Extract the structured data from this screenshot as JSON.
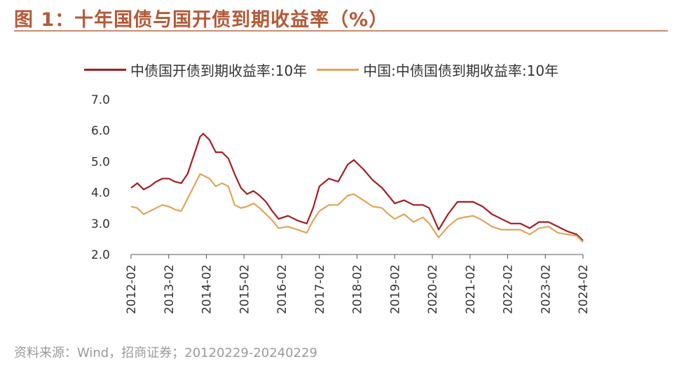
{
  "title": "图 1：十年国债与国开债到期收益率（%）",
  "source": "资料来源：Wind，招商证券；20120229-20240229",
  "chart_data": {
    "type": "line",
    "xlim": [
      "2012-02",
      "2024-02"
    ],
    "ylim": [
      2.0,
      7.0
    ],
    "yticks": [
      "2.0",
      "3.0",
      "4.0",
      "5.0",
      "6.0",
      "7.0"
    ],
    "xticks": [
      "2012-02",
      "2013-02",
      "2014-02",
      "2015-02",
      "2016-02",
      "2017-02",
      "2018-02",
      "2019-02",
      "2020-02",
      "2021-02",
      "2022-02",
      "2023-02",
      "2024-02"
    ],
    "legend_position": "top",
    "grid": false,
    "series": [
      {
        "name": "中债国开债到期收益率:10年",
        "color": "#a31f22",
        "points": [
          [
            "2012-02",
            4.15
          ],
          [
            "2012-04",
            4.3
          ],
          [
            "2012-06",
            4.1
          ],
          [
            "2012-08",
            4.2
          ],
          [
            "2012-10",
            4.35
          ],
          [
            "2012-12",
            4.45
          ],
          [
            "2013-02",
            4.45
          ],
          [
            "2013-04",
            4.35
          ],
          [
            "2013-06",
            4.3
          ],
          [
            "2013-08",
            4.6
          ],
          [
            "2013-10",
            5.2
          ],
          [
            "2013-12",
            5.8
          ],
          [
            "2014-01",
            5.9
          ],
          [
            "2014-03",
            5.7
          ],
          [
            "2014-05",
            5.3
          ],
          [
            "2014-07",
            5.3
          ],
          [
            "2014-09",
            5.1
          ],
          [
            "2014-11",
            4.6
          ],
          [
            "2015-01",
            4.15
          ],
          [
            "2015-03",
            3.95
          ],
          [
            "2015-05",
            4.05
          ],
          [
            "2015-07",
            3.9
          ],
          [
            "2015-09",
            3.7
          ],
          [
            "2015-11",
            3.4
          ],
          [
            "2016-01",
            3.15
          ],
          [
            "2016-04",
            3.25
          ],
          [
            "2016-07",
            3.1
          ],
          [
            "2016-10",
            3.0
          ],
          [
            "2016-12",
            3.5
          ],
          [
            "2017-02",
            4.2
          ],
          [
            "2017-05",
            4.45
          ],
          [
            "2017-08",
            4.35
          ],
          [
            "2017-11",
            4.9
          ],
          [
            "2018-01",
            5.05
          ],
          [
            "2018-04",
            4.75
          ],
          [
            "2018-07",
            4.4
          ],
          [
            "2018-10",
            4.15
          ],
          [
            "2018-12",
            3.9
          ],
          [
            "2019-02",
            3.65
          ],
          [
            "2019-05",
            3.75
          ],
          [
            "2019-08",
            3.6
          ],
          [
            "2019-11",
            3.6
          ],
          [
            "2020-01",
            3.5
          ],
          [
            "2020-04",
            2.8
          ],
          [
            "2020-07",
            3.3
          ],
          [
            "2020-10",
            3.7
          ],
          [
            "2020-12",
            3.7
          ],
          [
            "2021-03",
            3.7
          ],
          [
            "2021-06",
            3.55
          ],
          [
            "2021-09",
            3.3
          ],
          [
            "2021-12",
            3.15
          ],
          [
            "2022-03",
            3.0
          ],
          [
            "2022-06",
            3.0
          ],
          [
            "2022-09",
            2.85
          ],
          [
            "2022-12",
            3.05
          ],
          [
            "2023-03",
            3.05
          ],
          [
            "2023-06",
            2.9
          ],
          [
            "2023-09",
            2.75
          ],
          [
            "2023-12",
            2.65
          ],
          [
            "2024-02",
            2.45
          ]
        ]
      },
      {
        "name": "中国:中债国债到期收益率:10年",
        "color": "#e0a55a",
        "points": [
          [
            "2012-02",
            3.55
          ],
          [
            "2012-04",
            3.5
          ],
          [
            "2012-06",
            3.3
          ],
          [
            "2012-08",
            3.4
          ],
          [
            "2012-10",
            3.5
          ],
          [
            "2012-12",
            3.6
          ],
          [
            "2013-02",
            3.55
          ],
          [
            "2013-04",
            3.45
          ],
          [
            "2013-06",
            3.4
          ],
          [
            "2013-08",
            3.8
          ],
          [
            "2013-10",
            4.2
          ],
          [
            "2013-12",
            4.6
          ],
          [
            "2014-01",
            4.55
          ],
          [
            "2014-03",
            4.45
          ],
          [
            "2014-05",
            4.2
          ],
          [
            "2014-07",
            4.3
          ],
          [
            "2014-09",
            4.2
          ],
          [
            "2014-11",
            3.6
          ],
          [
            "2015-01",
            3.5
          ],
          [
            "2015-03",
            3.55
          ],
          [
            "2015-05",
            3.65
          ],
          [
            "2015-07",
            3.5
          ],
          [
            "2015-09",
            3.3
          ],
          [
            "2015-11",
            3.1
          ],
          [
            "2016-01",
            2.85
          ],
          [
            "2016-04",
            2.9
          ],
          [
            "2016-07",
            2.8
          ],
          [
            "2016-10",
            2.7
          ],
          [
            "2016-12",
            3.1
          ],
          [
            "2017-02",
            3.4
          ],
          [
            "2017-05",
            3.6
          ],
          [
            "2017-08",
            3.6
          ],
          [
            "2017-11",
            3.9
          ],
          [
            "2018-01",
            3.95
          ],
          [
            "2018-04",
            3.75
          ],
          [
            "2018-07",
            3.55
          ],
          [
            "2018-10",
            3.5
          ],
          [
            "2018-12",
            3.3
          ],
          [
            "2019-02",
            3.15
          ],
          [
            "2019-05",
            3.3
          ],
          [
            "2019-08",
            3.05
          ],
          [
            "2019-11",
            3.2
          ],
          [
            "2020-01",
            3.0
          ],
          [
            "2020-04",
            2.55
          ],
          [
            "2020-07",
            2.9
          ],
          [
            "2020-10",
            3.15
          ],
          [
            "2020-12",
            3.2
          ],
          [
            "2021-03",
            3.25
          ],
          [
            "2021-06",
            3.1
          ],
          [
            "2021-09",
            2.9
          ],
          [
            "2021-12",
            2.8
          ],
          [
            "2022-03",
            2.8
          ],
          [
            "2022-06",
            2.8
          ],
          [
            "2022-09",
            2.65
          ],
          [
            "2022-12",
            2.85
          ],
          [
            "2023-03",
            2.9
          ],
          [
            "2023-06",
            2.7
          ],
          [
            "2023-09",
            2.65
          ],
          [
            "2023-12",
            2.6
          ],
          [
            "2024-02",
            2.4
          ]
        ]
      }
    ]
  }
}
